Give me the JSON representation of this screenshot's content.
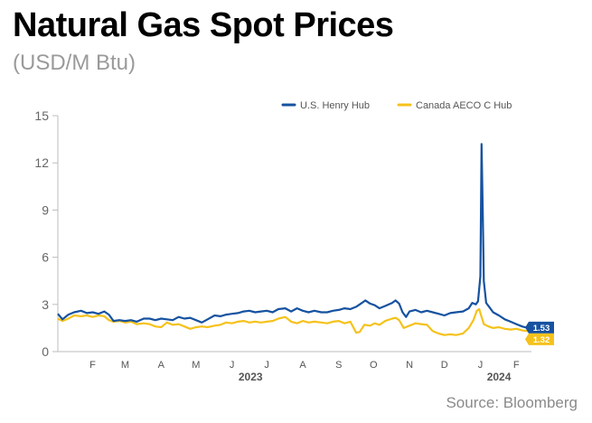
{
  "title": "Natural Gas Spot Prices",
  "subtitle": "(USD/M Btu)",
  "source": "Source: Bloomberg",
  "chart_data": {
    "type": "line",
    "ylim": [
      0,
      15
    ],
    "yticks": [
      "0",
      "3",
      "6",
      "9",
      "12",
      "15"
    ],
    "ytick_values": [
      0,
      3,
      6,
      9,
      12,
      15
    ],
    "xlim": [
      "2023-01-16",
      "2024-02-28"
    ],
    "month_ticks": [
      {
        "label": "F",
        "date": "2023-02-15"
      },
      {
        "label": "M",
        "date": "2023-03-15"
      },
      {
        "label": "A",
        "date": "2023-04-15"
      },
      {
        "label": "M",
        "date": "2023-05-15"
      },
      {
        "label": "J",
        "date": "2023-06-15"
      },
      {
        "label": "J",
        "date": "2023-07-15"
      },
      {
        "label": "A",
        "date": "2023-08-15"
      },
      {
        "label": "S",
        "date": "2023-09-15"
      },
      {
        "label": "O",
        "date": "2023-10-15"
      },
      {
        "label": "N",
        "date": "2023-11-15"
      },
      {
        "label": "D",
        "date": "2023-12-15"
      },
      {
        "label": "J",
        "date": "2024-01-15"
      },
      {
        "label": "F",
        "date": "2024-02-15"
      }
    ],
    "year_labels": [
      {
        "label": "2023",
        "date": "2023-07-01"
      },
      {
        "label": "2024",
        "date": "2024-01-31"
      }
    ],
    "grid": false,
    "legend_position": "top-right",
    "series": [
      {
        "name": "U.S. Henry Hub",
        "color": "#1652a0",
        "end_label": "1.53",
        "points": [
          [
            "2023-01-16",
            2.4
          ],
          [
            "2023-01-20",
            2.05
          ],
          [
            "2023-01-25",
            2.35
          ],
          [
            "2023-01-30",
            2.5
          ],
          [
            "2023-02-05",
            2.6
          ],
          [
            "2023-02-10",
            2.45
          ],
          [
            "2023-02-15",
            2.5
          ],
          [
            "2023-02-20",
            2.4
          ],
          [
            "2023-02-25",
            2.55
          ],
          [
            "2023-03-01",
            2.35
          ],
          [
            "2023-03-05",
            1.95
          ],
          [
            "2023-03-10",
            2.0
          ],
          [
            "2023-03-15",
            1.95
          ],
          [
            "2023-03-20",
            2.0
          ],
          [
            "2023-03-25",
            1.9
          ],
          [
            "2023-03-31",
            2.1
          ],
          [
            "2023-04-05",
            2.1
          ],
          [
            "2023-04-10",
            2.0
          ],
          [
            "2023-04-15",
            2.1
          ],
          [
            "2023-04-20",
            2.05
          ],
          [
            "2023-04-25",
            2.0
          ],
          [
            "2023-04-30",
            2.2
          ],
          [
            "2023-05-05",
            2.1
          ],
          [
            "2023-05-10",
            2.15
          ],
          [
            "2023-05-15",
            2.0
          ],
          [
            "2023-05-20",
            1.85
          ],
          [
            "2023-05-25",
            2.05
          ],
          [
            "2023-05-31",
            2.3
          ],
          [
            "2023-06-05",
            2.25
          ],
          [
            "2023-06-10",
            2.35
          ],
          [
            "2023-06-15",
            2.4
          ],
          [
            "2023-06-20",
            2.45
          ],
          [
            "2023-06-25",
            2.55
          ],
          [
            "2023-06-30",
            2.6
          ],
          [
            "2023-07-05",
            2.5
          ],
          [
            "2023-07-10",
            2.55
          ],
          [
            "2023-07-15",
            2.6
          ],
          [
            "2023-07-20",
            2.5
          ],
          [
            "2023-07-25",
            2.7
          ],
          [
            "2023-07-31",
            2.75
          ],
          [
            "2023-08-05",
            2.55
          ],
          [
            "2023-08-10",
            2.75
          ],
          [
            "2023-08-15",
            2.6
          ],
          [
            "2023-08-20",
            2.5
          ],
          [
            "2023-08-25",
            2.6
          ],
          [
            "2023-08-31",
            2.5
          ],
          [
            "2023-09-05",
            2.5
          ],
          [
            "2023-09-10",
            2.6
          ],
          [
            "2023-09-15",
            2.65
          ],
          [
            "2023-09-20",
            2.75
          ],
          [
            "2023-09-25",
            2.7
          ],
          [
            "2023-09-30",
            2.85
          ],
          [
            "2023-10-05",
            3.1
          ],
          [
            "2023-10-08",
            3.25
          ],
          [
            "2023-10-12",
            3.05
          ],
          [
            "2023-10-16",
            2.95
          ],
          [
            "2023-10-20",
            2.75
          ],
          [
            "2023-10-25",
            2.9
          ],
          [
            "2023-10-31",
            3.1
          ],
          [
            "2023-11-03",
            3.25
          ],
          [
            "2023-11-06",
            3.05
          ],
          [
            "2023-11-09",
            2.5
          ],
          [
            "2023-11-12",
            2.2
          ],
          [
            "2023-11-15",
            2.55
          ],
          [
            "2023-11-20",
            2.65
          ],
          [
            "2023-11-25",
            2.5
          ],
          [
            "2023-11-30",
            2.6
          ],
          [
            "2023-12-05",
            2.5
          ],
          [
            "2023-12-10",
            2.4
          ],
          [
            "2023-12-15",
            2.3
          ],
          [
            "2023-12-20",
            2.45
          ],
          [
            "2023-12-25",
            2.5
          ],
          [
            "2023-12-31",
            2.55
          ],
          [
            "2024-01-05",
            2.75
          ],
          [
            "2024-01-08",
            3.1
          ],
          [
            "2024-01-11",
            3.0
          ],
          [
            "2024-01-13",
            3.2
          ],
          [
            "2024-01-15",
            4.8
          ],
          [
            "2024-01-16",
            13.2
          ],
          [
            "2024-01-17",
            9.0
          ],
          [
            "2024-01-18",
            4.5
          ],
          [
            "2024-01-20",
            3.1
          ],
          [
            "2024-01-23",
            2.8
          ],
          [
            "2024-01-26",
            2.5
          ],
          [
            "2024-01-31",
            2.3
          ],
          [
            "2024-02-05",
            2.05
          ],
          [
            "2024-02-10",
            1.9
          ],
          [
            "2024-02-15",
            1.75
          ],
          [
            "2024-02-20",
            1.6
          ],
          [
            "2024-02-25",
            1.5
          ],
          [
            "2024-02-28",
            1.53
          ]
        ]
      },
      {
        "name": "Canada AECO C Hub",
        "color": "#f5c21b",
        "end_label": "1.32",
        "points": [
          [
            "2023-01-16",
            2.1
          ],
          [
            "2023-01-20",
            1.95
          ],
          [
            "2023-01-25",
            2.1
          ],
          [
            "2023-01-30",
            2.3
          ],
          [
            "2023-02-05",
            2.25
          ],
          [
            "2023-02-10",
            2.3
          ],
          [
            "2023-02-15",
            2.2
          ],
          [
            "2023-02-20",
            2.3
          ],
          [
            "2023-02-25",
            2.25
          ],
          [
            "2023-03-01",
            2.0
          ],
          [
            "2023-03-05",
            1.9
          ],
          [
            "2023-03-10",
            1.95
          ],
          [
            "2023-03-15",
            1.85
          ],
          [
            "2023-03-20",
            1.9
          ],
          [
            "2023-03-25",
            1.75
          ],
          [
            "2023-03-31",
            1.8
          ],
          [
            "2023-04-05",
            1.75
          ],
          [
            "2023-04-10",
            1.6
          ],
          [
            "2023-04-15",
            1.55
          ],
          [
            "2023-04-20",
            1.85
          ],
          [
            "2023-04-25",
            1.7
          ],
          [
            "2023-04-30",
            1.75
          ],
          [
            "2023-05-05",
            1.6
          ],
          [
            "2023-05-10",
            1.45
          ],
          [
            "2023-05-15",
            1.55
          ],
          [
            "2023-05-20",
            1.6
          ],
          [
            "2023-05-25",
            1.55
          ],
          [
            "2023-05-31",
            1.65
          ],
          [
            "2023-06-05",
            1.7
          ],
          [
            "2023-06-10",
            1.85
          ],
          [
            "2023-06-15",
            1.8
          ],
          [
            "2023-06-20",
            1.9
          ],
          [
            "2023-06-25",
            1.95
          ],
          [
            "2023-06-30",
            1.85
          ],
          [
            "2023-07-05",
            1.9
          ],
          [
            "2023-07-10",
            1.85
          ],
          [
            "2023-07-15",
            1.9
          ],
          [
            "2023-07-20",
            1.95
          ],
          [
            "2023-07-25",
            2.1
          ],
          [
            "2023-07-31",
            2.2
          ],
          [
            "2023-08-05",
            1.9
          ],
          [
            "2023-08-10",
            1.8
          ],
          [
            "2023-08-15",
            1.95
          ],
          [
            "2023-08-20",
            1.85
          ],
          [
            "2023-08-25",
            1.9
          ],
          [
            "2023-08-31",
            1.85
          ],
          [
            "2023-09-05",
            1.8
          ],
          [
            "2023-09-10",
            1.9
          ],
          [
            "2023-09-15",
            1.95
          ],
          [
            "2023-09-20",
            1.8
          ],
          [
            "2023-09-25",
            1.9
          ],
          [
            "2023-09-30",
            1.2
          ],
          [
            "2023-10-03",
            1.25
          ],
          [
            "2023-10-07",
            1.7
          ],
          [
            "2023-10-12",
            1.65
          ],
          [
            "2023-10-16",
            1.8
          ],
          [
            "2023-10-20",
            1.7
          ],
          [
            "2023-10-25",
            1.95
          ],
          [
            "2023-10-31",
            2.1
          ],
          [
            "2023-11-03",
            2.15
          ],
          [
            "2023-11-06",
            2.0
          ],
          [
            "2023-11-10",
            1.5
          ],
          [
            "2023-11-15",
            1.65
          ],
          [
            "2023-11-20",
            1.8
          ],
          [
            "2023-11-25",
            1.75
          ],
          [
            "2023-11-30",
            1.7
          ],
          [
            "2023-12-05",
            1.3
          ],
          [
            "2023-12-10",
            1.15
          ],
          [
            "2023-12-15",
            1.05
          ],
          [
            "2023-12-20",
            1.1
          ],
          [
            "2023-12-25",
            1.05
          ],
          [
            "2023-12-31",
            1.15
          ],
          [
            "2024-01-05",
            1.5
          ],
          [
            "2024-01-09",
            2.0
          ],
          [
            "2024-01-12",
            2.6
          ],
          [
            "2024-01-14",
            2.7
          ],
          [
            "2024-01-16",
            2.2
          ],
          [
            "2024-01-18",
            1.75
          ],
          [
            "2024-01-22",
            1.6
          ],
          [
            "2024-01-26",
            1.5
          ],
          [
            "2024-01-31",
            1.55
          ],
          [
            "2024-02-05",
            1.45
          ],
          [
            "2024-02-10",
            1.4
          ],
          [
            "2024-02-15",
            1.45
          ],
          [
            "2024-02-20",
            1.35
          ],
          [
            "2024-02-25",
            1.3
          ],
          [
            "2024-02-28",
            1.32
          ]
        ]
      }
    ]
  }
}
